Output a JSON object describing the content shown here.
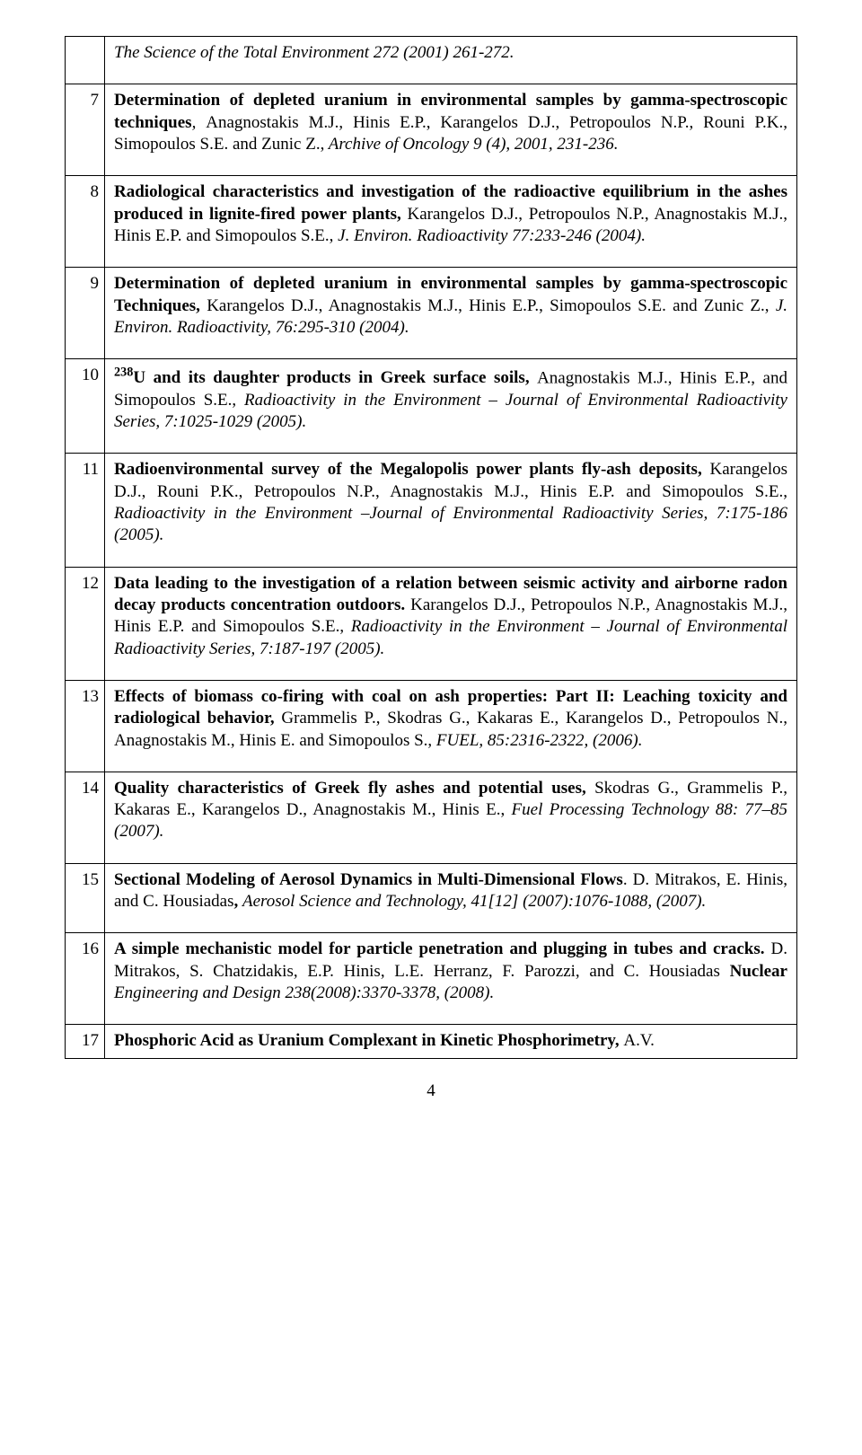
{
  "rows": [
    {
      "num": "",
      "spans": [
        {
          "cls": "i",
          "text": "The Science of the Total Environment 272 (2001) 261-272."
        }
      ]
    },
    {
      "num": "7",
      "spans": [
        {
          "cls": "b",
          "text": "Determination of depleted uranium in environmental samples by gamma-spectroscopic techniques"
        },
        {
          "cls": "i",
          "text": ", "
        },
        {
          "cls": "",
          "text": "Anagnostakis M.J., Hinis E.P., Karangelos D.J., Petropoulos N.P., Rouni P.K., Simopoulos S.E. and Zunic Z.,"
        },
        {
          "cls": "i",
          "text": " Archive of Oncology 9 (4), 2001, 231-236."
        }
      ]
    },
    {
      "num": "8",
      "spans": [
        {
          "cls": "b",
          "text": "Radiological characteristics and investigation of the radioactive equilibrium in the ashes produced in lignite-fired power plants, "
        },
        {
          "cls": "",
          "text": "Karangelos D.J., Petropoulos N.P., Anagnostakis M.J., Hinis E.P. and Simopoulos S.E., "
        },
        {
          "cls": "i",
          "text": "J. Environ. Radioactivity 77:233-246 (2004)."
        }
      ]
    },
    {
      "num": "9",
      "spans": [
        {
          "cls": "b",
          "text": "Determination of depleted uranium in environmental samples by gamma-spectroscopic Techniques, "
        },
        {
          "cls": "",
          "text": "Karangelos D.J., Anagnostakis M.J., Hinis E.P., Simopoulos S.E. and Zunic Z., "
        },
        {
          "cls": "i",
          "text": "J. Environ. Radioactivity, 76:295-310 (2004)."
        }
      ]
    },
    {
      "num": "10",
      "spans": [
        {
          "cls": "b",
          "sup": "238",
          "text": "U and its daughter products in Greek surface soils, "
        },
        {
          "cls": "",
          "text": "Anagnostakis M.J., Hinis E.P., and Simopoulos S.E., "
        },
        {
          "cls": "i",
          "text": "Radioactivity in the Environment – Journal of Environmental Radioactivity Series, 7:1025-1029 (2005)."
        }
      ]
    },
    {
      "num": "11",
      "spans": [
        {
          "cls": "b",
          "text": "Radioenvironmental survey of the Megalopolis power plants fly-ash deposits, "
        },
        {
          "cls": "",
          "text": "Karangelos D.J., Rouni P.K., Petropoulos N.P., Anagnostakis M.J., Hinis E.P. and Simopoulos S.E., "
        },
        {
          "cls": "i",
          "text": "Radioactivity in the Environment –Journal of Environmental Radioactivity Series, 7:175-186 (2005)."
        }
      ]
    },
    {
      "num": "12",
      "spans": [
        {
          "cls": "b",
          "text": "Data leading to the investigation of a relation between seismic activity and airborne radon decay products concentration outdoors. "
        },
        {
          "cls": "",
          "text": "Karangelos D.J., Petropoulos N.P., Anagnostakis M.J., Hinis E.P. and Simopoulos S.E., "
        },
        {
          "cls": "i",
          "text": "Radioactivity in the Environment – Journal of Environmental Radioactivity Series, 7:187-197 (2005)."
        }
      ]
    },
    {
      "num": "13",
      "spans": [
        {
          "cls": "b",
          "text": "Effects of biomass co-firing with coal on ash properties: Part II: Leaching toxicity and radiological behavior, "
        },
        {
          "cls": "",
          "text": "Grammelis P., Skodras G., Kakaras E., Karangelos D., Petropoulos N., Anagnostakis M., Hinis E. and Simopoulos S.,"
        },
        {
          "cls": "i",
          "text": " FUEL, 85:2316-2322, (2006)."
        }
      ]
    },
    {
      "num": "14",
      "spans": [
        {
          "cls": "b",
          "text": "Quality characteristics of Greek fly ashes and potential uses, "
        },
        {
          "cls": "",
          "text": "Skodras G., Grammelis P., Kakaras E., Karangelos D., Anagnostakis M., Hinis E., "
        },
        {
          "cls": "i",
          "text": "Fuel Processing Technology 88: 77–85 (2007)."
        }
      ]
    },
    {
      "num": "15",
      "spans": [
        {
          "cls": "b",
          "text": "Sectional Modeling of Aerosol Dynamics in Multi-Dimensional Flows"
        },
        {
          "cls": "",
          "text": ". D. Mitrakos, E. Hinis, and C. Housiadas"
        },
        {
          "cls": "b",
          "text": ", "
        },
        {
          "cls": "i",
          "text": "Aerosol Science and Technology, 41[12] (2007):1076-1088, (2007)."
        }
      ]
    },
    {
      "num": "16",
      "spans": [
        {
          "cls": "b",
          "text": "A simple mechanistic model for particle penetration and plugging in tubes and cracks. "
        },
        {
          "cls": "",
          "text": "D. Mitrakos, S. Chatzidakis, E.P. Hinis, L.E. Herranz, F. Parozzi, and C. Housiadas "
        },
        {
          "cls": "b",
          "text": "Nuclear "
        },
        {
          "cls": "i",
          "text": "Engineering and Design 238(2008):3370-3378, (2008)."
        }
      ]
    },
    {
      "num": "17",
      "spans": [
        {
          "cls": "b",
          "text": "Phosphoric Acid as Uranium Complexant in Kinetic Phosphorimetry, "
        },
        {
          "cls": "",
          "text": "A.V."
        }
      ],
      "tight": true
    }
  ],
  "pagenum": "4"
}
